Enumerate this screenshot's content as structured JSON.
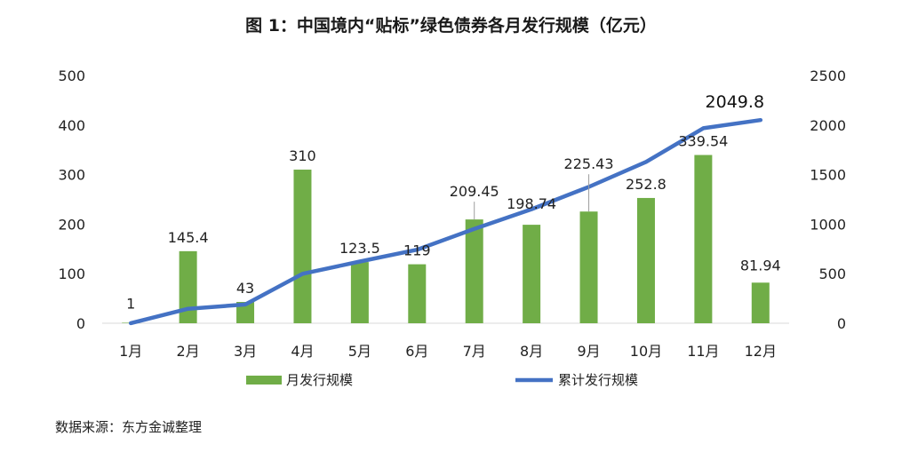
{
  "chart_data": {
    "type": "bar+line",
    "title": "图 1：中国境内“贴标”绿色债券各月发行规模（亿元）",
    "categories": [
      "1月",
      "2月",
      "3月",
      "4月",
      "5月",
      "6月",
      "7月",
      "8月",
      "9月",
      "10月",
      "11月",
      "12月"
    ],
    "series": [
      {
        "name": "月发行规模",
        "type": "bar",
        "axis": "left",
        "color": "#70ad47",
        "values": [
          1,
          145.4,
          43,
          310,
          123.5,
          119,
          209.45,
          198.74,
          225.43,
          252.8,
          339.54,
          81.94
        ],
        "labels": [
          "1",
          "145.4",
          "43",
          "310",
          "123.5",
          "119",
          "209.45",
          "198.74",
          "225.43",
          "252.8",
          "339.54",
          "81.94"
        ]
      },
      {
        "name": "累计发行规模",
        "type": "line",
        "axis": "right",
        "color": "#4472c4",
        "values": [
          1,
          146.4,
          189.4,
          499.4,
          622.9,
          741.9,
          951.35,
          1150.09,
          1375.52,
          1628.32,
          1967.86,
          2049.8
        ],
        "end_label": "2049.8"
      }
    ],
    "y_left": {
      "min": 0,
      "max": 500,
      "ticks": [
        "0",
        "100",
        "200",
        "300",
        "400",
        "500"
      ]
    },
    "y_right": {
      "min": 0,
      "max": 2500,
      "ticks": [
        "0",
        "500",
        "1000",
        "1500",
        "2000",
        "2500"
      ]
    },
    "legend_position": "bottom",
    "grid": false
  },
  "source": "数据来源：东方金诚整理"
}
